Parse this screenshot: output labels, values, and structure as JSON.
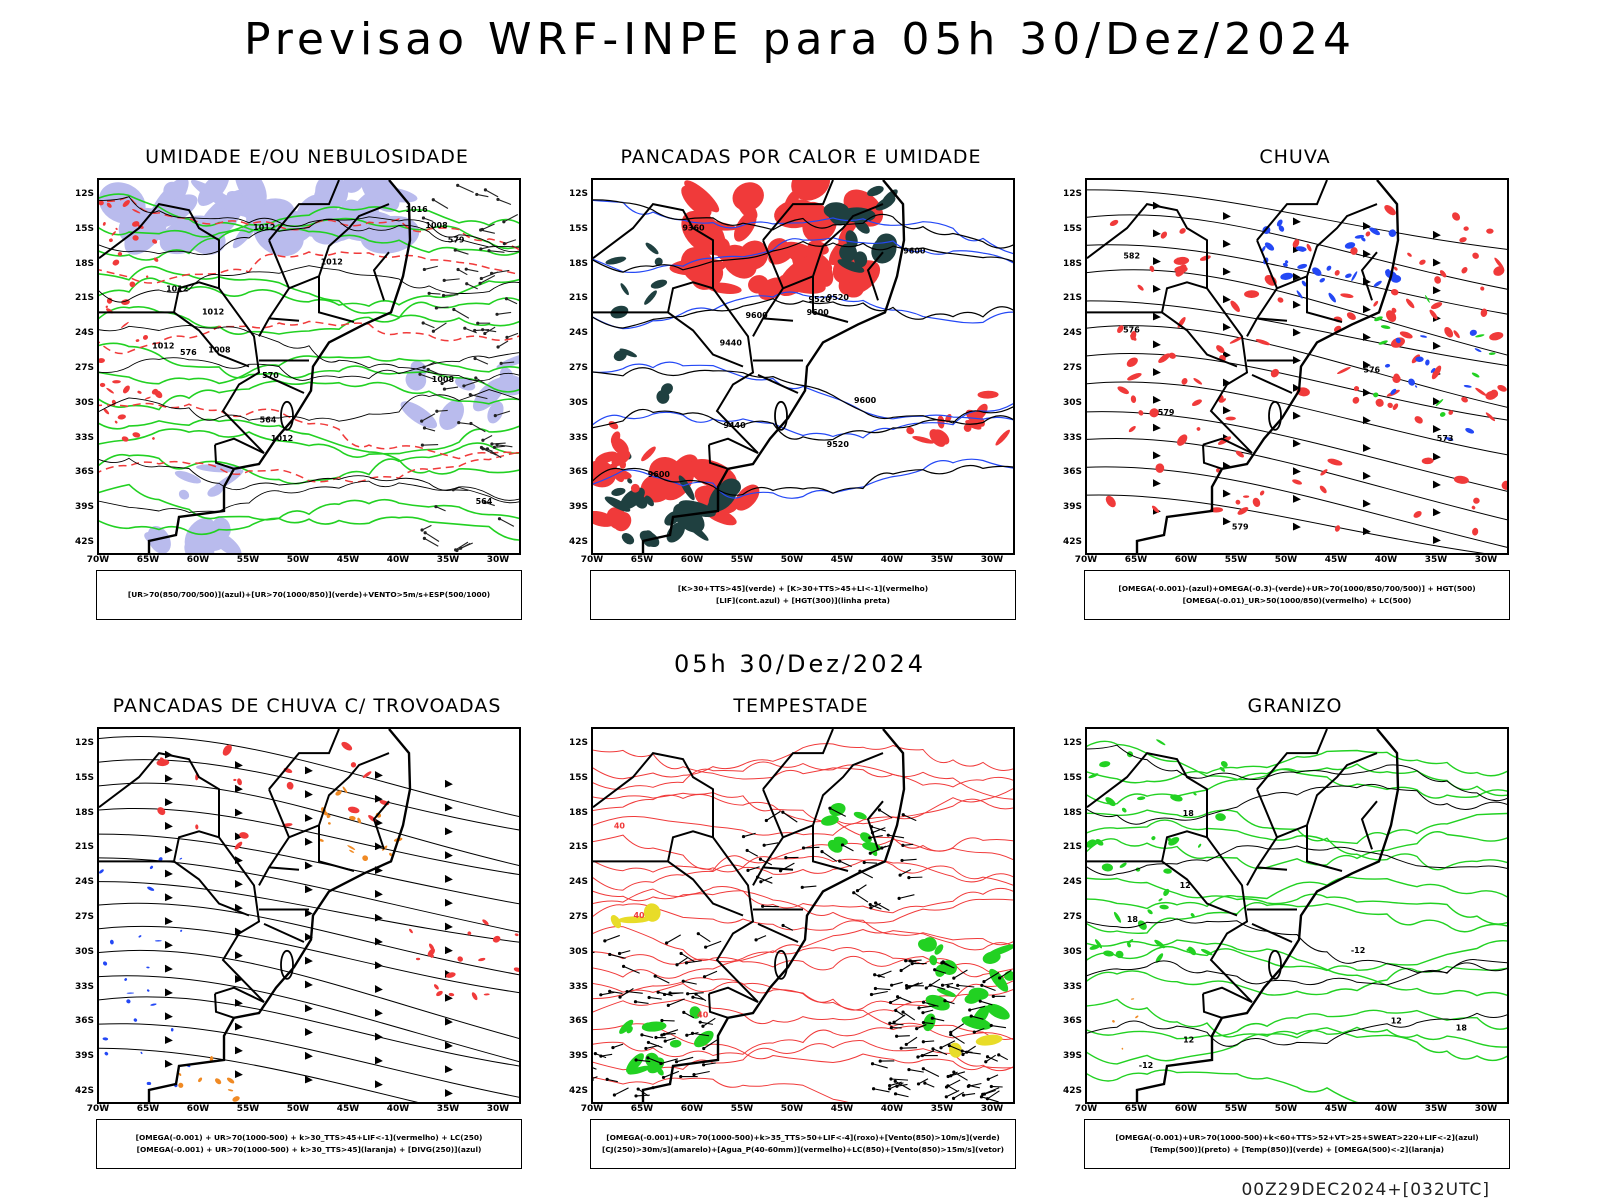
{
  "title": "Previsao WRF-INPE  para 05h 30/Dez/2024",
  "mid_title": "05h 30/Dez/2024",
  "footer": "00Z29DEC2024+[032UTC]",
  "axes": {
    "lat_labels": [
      "12S",
      "15S",
      "18S",
      "21S",
      "24S",
      "27S",
      "30S",
      "33S",
      "36S",
      "39S",
      "42S"
    ],
    "lon_labels": [
      "70W",
      "65W",
      "60W",
      "55W",
      "50W",
      "45W",
      "40W",
      "35W",
      "30W"
    ]
  },
  "colors": {
    "red": "#f03a3a",
    "green": "#22d122",
    "blue": "#2448f5",
    "lavender": "#b2b4ec",
    "darkteal": "#1f4040",
    "orange": "#f08a24",
    "yellow": "#e8dc28",
    "black": "#000000"
  },
  "panels": [
    {
      "id": "umidade",
      "title": "UMIDADE E/OU NEBULOSIDADE",
      "legend": [
        "[UR>70(850/700/500)](azul)+[UR>70(1000/850)](verde)+VENTO>5m/s+ESP(500/1000)"
      ],
      "contour_labels": [
        "1008",
        "1012",
        "1012",
        "1012",
        "1008",
        "1012",
        "1012",
        "1016",
        "1012",
        "1008",
        "570",
        "579",
        "564",
        "564",
        "576"
      ]
    },
    {
      "id": "pancadas-calor",
      "title": "PANCADAS POR CALOR E UMIDADE",
      "legend": [
        "[K>30+TTS>45](verde) + [K>30+TTS>45+LI<-1](vermelho)",
        "[LIF](cont.azul) + [HGT(300)](linha preta)"
      ],
      "contour_labels": [
        "9600",
        "9600",
        "9600",
        "9600",
        "9600",
        "9520",
        "9520",
        "9520",
        "9440",
        "9440",
        "9360"
      ]
    },
    {
      "id": "chuva",
      "title": "CHUVA",
      "legend": [
        "[OMEGA(-0.001)-(azul)+OMEGA(-0.3)-(verde)+UR>70(1000/850/700/500)] + HGT(500)",
        "[OMEGA(-0.01)_UR>50(1000/850)(vermelho) + LC(500)"
      ],
      "contour_labels": [
        "582",
        "579",
        "579",
        "576",
        "573",
        "576"
      ]
    },
    {
      "id": "pancadas-trovoadas",
      "title": "PANCADAS DE CHUVA C/ TROVOADAS",
      "legend": [
        "[OMEGA(-0.001) + UR>70(1000-500) + k>30_TTS>45+LIF<-1](vermelho) + LC(250)",
        "[OMEGA(-0.001) + UR>70(1000-500) + k>30_TTS>45](laranja) + [DIVG(250)](azul)"
      ],
      "contour_labels": []
    },
    {
      "id": "tempestade",
      "title": "TEMPESTADE",
      "legend": [
        "[OMEGA(-0.001)+UR>70(1000-500)+k>35_TTS>50+LIF<-4](roxo)+[Vento(850)>10m/s](verde)",
        "[CJ(250)>30m/s](amarelo)+[Agua_P(40-60mm)](vermelho)+LC(850)+[Vento(850)>15m/s](vetor)"
      ],
      "contour_labels": [
        "40",
        "40",
        "40"
      ]
    },
    {
      "id": "granizo",
      "title": "GRANIZO",
      "legend": [
        "[OMEGA(-0.001)+UR>70(1000-500)+k<60+TTS>52+VT>25+SWEAT>220+LIF<-2](azul)",
        "[Temp(500)](preto) + [Temp(850)](verde) + [OMEGA(500)<-2](laranja)"
      ],
      "contour_labels": [
        "12",
        "12",
        "12",
        "18",
        "18",
        "18",
        "-12",
        "-12"
      ]
    }
  ]
}
